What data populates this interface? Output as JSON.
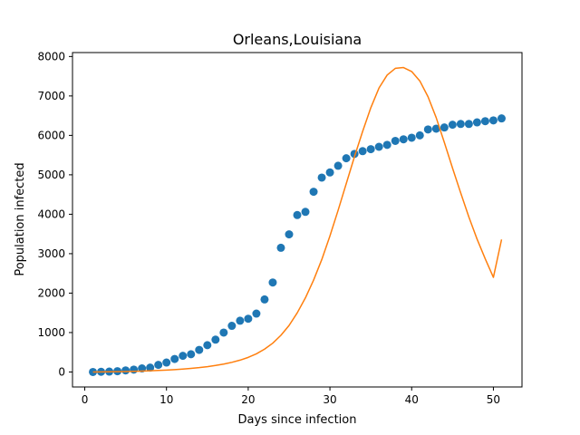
{
  "chart_data": {
    "type": "scatter",
    "title": "Orleans,Louisiana",
    "xlabel": "Days since infection",
    "ylabel": "Population infected",
    "xlim": [
      -1.5,
      53.5
    ],
    "ylim": [
      -380,
      8100
    ],
    "xticks": [
      0,
      10,
      20,
      30,
      40,
      50
    ],
    "yticks": [
      0,
      1000,
      2000,
      3000,
      4000,
      5000,
      6000,
      7000,
      8000
    ],
    "grid": false,
    "series": [
      {
        "kind": "scatter",
        "color": "#1f77b4",
        "x": [
          1,
          2,
          3,
          4,
          5,
          6,
          7,
          8,
          9,
          10,
          11,
          12,
          13,
          14,
          15,
          16,
          17,
          18,
          19,
          20,
          21,
          22,
          23,
          24,
          25,
          26,
          27,
          28,
          29,
          30,
          31,
          32,
          33,
          34,
          35,
          36,
          37,
          38,
          39,
          40,
          41,
          42,
          43,
          44,
          45,
          46,
          47,
          48,
          49,
          50,
          51
        ],
        "y": [
          0,
          5,
          10,
          20,
          40,
          60,
          90,
          110,
          180,
          240,
          330,
          410,
          450,
          560,
          680,
          820,
          1000,
          1170,
          1300,
          1350,
          1480,
          1840,
          2270,
          3150,
          3490,
          3980,
          4060,
          4570,
          4930,
          5060,
          5230,
          5420,
          5530,
          5600,
          5650,
          5710,
          5760,
          5860,
          5900,
          5940,
          6000,
          6150,
          6170,
          6200,
          6270,
          6290,
          6290,
          6330,
          6360,
          6380,
          6430
        ]
      },
      {
        "kind": "line",
        "color": "#ff7f0e",
        "x": [
          1,
          2,
          3,
          4,
          5,
          6,
          7,
          8,
          9,
          10,
          11,
          12,
          13,
          14,
          15,
          16,
          17,
          18,
          19,
          20,
          21,
          22,
          23,
          24,
          25,
          26,
          27,
          28,
          29,
          30,
          31,
          32,
          33,
          34,
          35,
          36,
          37,
          38,
          39,
          40,
          41,
          42,
          43,
          44,
          45,
          46,
          47,
          48,
          49,
          50,
          51
        ],
        "y": [
          0,
          2,
          5,
          8,
          12,
          17,
          23,
          30,
          38,
          48,
          60,
          74,
          90,
          110,
          135,
          165,
          200,
          245,
          300,
          370,
          460,
          580,
          730,
          930,
          1180,
          1500,
          1880,
          2330,
          2850,
          3450,
          4100,
          4780,
          5460,
          6100,
          6700,
          7200,
          7530,
          7700,
          7720,
          7620,
          7380,
          6980,
          6450,
          5820,
          5170,
          4540,
          3930,
          3370,
          2870,
          2400,
          3360
        ]
      }
    ]
  }
}
